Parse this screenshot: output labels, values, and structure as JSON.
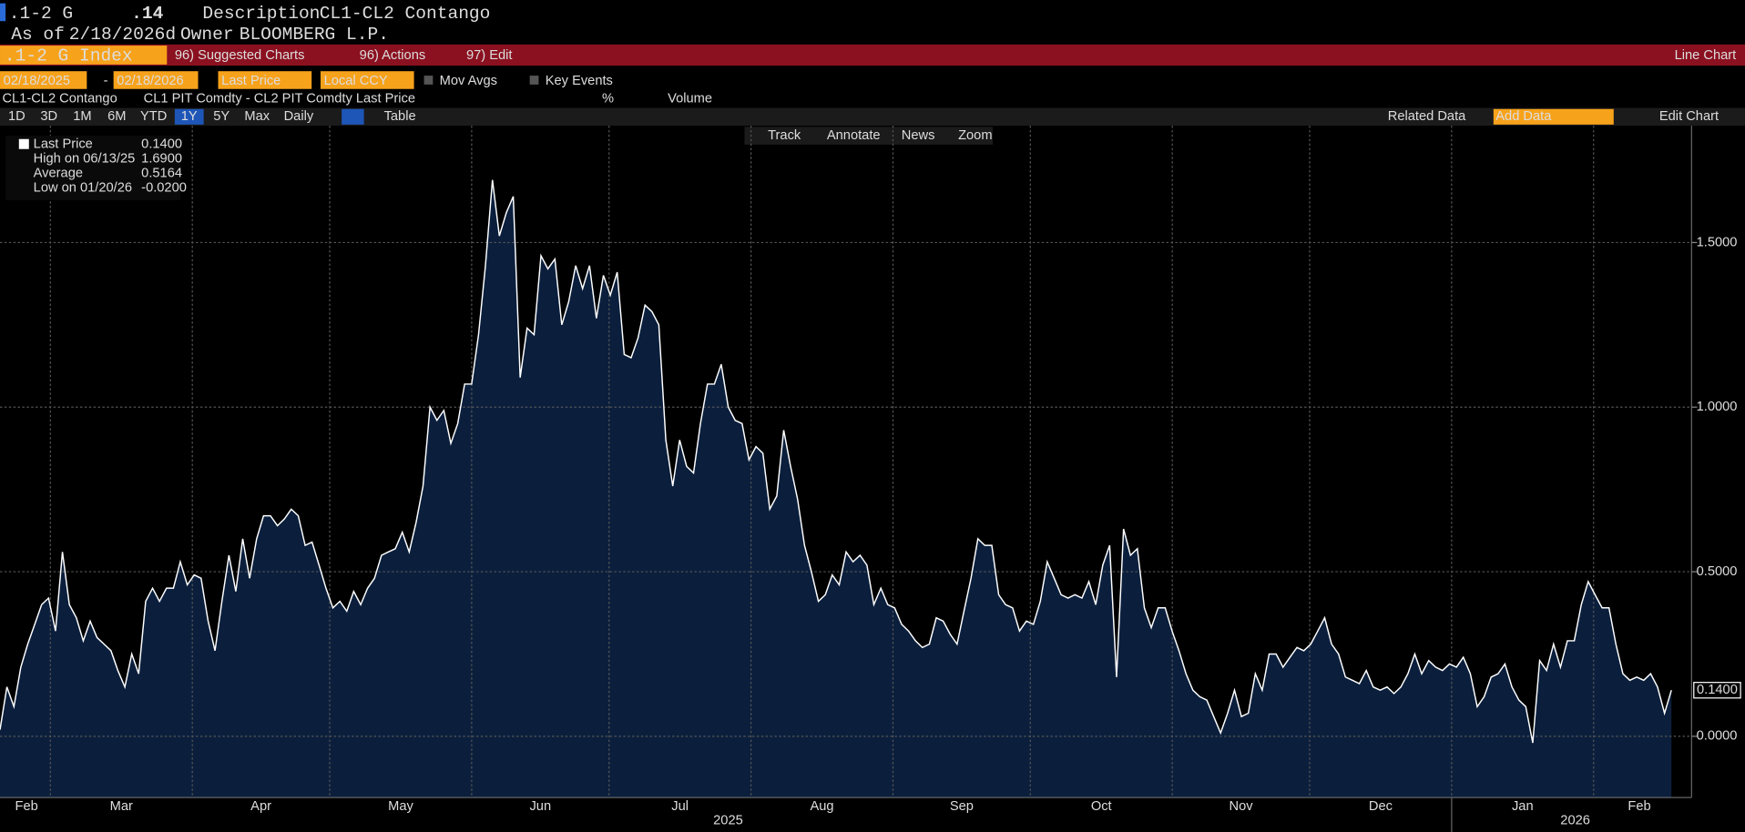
{
  "header": {
    "ticker": ".1-2 G",
    "last": ".14",
    "description_label": "Description",
    "description": "CL1-CL2 Contango",
    "asof_label": "As of",
    "asof": "2/18/2026d",
    "owner_label": "Owner",
    "owner": "BLOOMBERG L.P."
  },
  "menu": {
    "security": ".1-2 G Index",
    "suggested": "96) Suggested Charts",
    "actions": "96) Actions",
    "edit": "97) Edit",
    "view": "Line Chart"
  },
  "controls": {
    "start": "02/18/2025",
    "dash": "-",
    "end": "02/18/2026",
    "field": "Last Price",
    "currency": "Local CCY",
    "mov_avgs": "Mov Avgs",
    "key_events": "Key Events"
  },
  "series_row": {
    "name": "CL1-CL2 Contango",
    "formula": "CL1 PIT Comdty - CL2 PIT Comdty Last Price",
    "unit": "%",
    "volume": "Volume"
  },
  "periods": [
    "1D",
    "3D",
    "1M",
    "6M",
    "YTD",
    "1Y",
    "5Y",
    "Max"
  ],
  "frequency": "Daily",
  "table": "Table",
  "right_tools": {
    "related": "Related Data",
    "add": "Add Data",
    "edit_chart": "Edit Chart"
  },
  "chart_tools": [
    "Track",
    "Annotate",
    "News",
    "Zoom"
  ],
  "chart_data": {
    "type": "area",
    "color": "#ffffff",
    "fill": "#0b1f3d",
    "grid": true,
    "legend": [
      {
        "label": "Last Price",
        "value": "0.1400"
      },
      {
        "label": "High on 06/13/25",
        "value": "1.6900"
      },
      {
        "label": "Average",
        "value": "0.5164"
      },
      {
        "label": "Low on 01/20/26",
        "value": "-0.0200"
      }
    ],
    "price_tag": "0.1400",
    "values": [
      0.02,
      0.15,
      0.09,
      0.21,
      0.28,
      0.34,
      0.4,
      0.42,
      0.32,
      0.56,
      0.4,
      0.36,
      0.29,
      0.35,
      0.3,
      0.28,
      0.26,
      0.2,
      0.15,
      0.25,
      0.19,
      0.41,
      0.45,
      0.41,
      0.45,
      0.45,
      0.53,
      0.46,
      0.49,
      0.48,
      0.35,
      0.26,
      0.41,
      0.55,
      0.44,
      0.6,
      0.48,
      0.6,
      0.67,
      0.67,
      0.64,
      0.66,
      0.69,
      0.67,
      0.58,
      0.59,
      0.52,
      0.45,
      0.39,
      0.41,
      0.38,
      0.44,
      0.4,
      0.45,
      0.48,
      0.55,
      0.56,
      0.57,
      0.62,
      0.56,
      0.65,
      0.76,
      1.0,
      0.96,
      0.99,
      0.89,
      0.95,
      1.07,
      1.07,
      1.22,
      1.43,
      1.69,
      1.52,
      1.59,
      1.64,
      1.09,
      1.24,
      1.22,
      1.46,
      1.42,
      1.45,
      1.25,
      1.32,
      1.43,
      1.36,
      1.43,
      1.27,
      1.4,
      1.34,
      1.41,
      1.16,
      1.15,
      1.21,
      1.31,
      1.29,
      1.25,
      0.9,
      0.76,
      0.9,
      0.82,
      0.8,
      0.95,
      1.07,
      1.07,
      1.13,
      1.0,
      0.96,
      0.95,
      0.84,
      0.88,
      0.86,
      0.69,
      0.73,
      0.93,
      0.82,
      0.72,
      0.58,
      0.5,
      0.41,
      0.43,
      0.49,
      0.46,
      0.56,
      0.53,
      0.55,
      0.52,
      0.4,
      0.45,
      0.4,
      0.39,
      0.34,
      0.32,
      0.29,
      0.27,
      0.28,
      0.36,
      0.35,
      0.31,
      0.28,
      0.38,
      0.48,
      0.6,
      0.58,
      0.58,
      0.43,
      0.4,
      0.39,
      0.32,
      0.35,
      0.34,
      0.41,
      0.53,
      0.48,
      0.43,
      0.42,
      0.43,
      0.42,
      0.47,
      0.4,
      0.52,
      0.58,
      0.18,
      0.63,
      0.55,
      0.57,
      0.39,
      0.33,
      0.39,
      0.39,
      0.32,
      0.26,
      0.19,
      0.14,
      0.12,
      0.11,
      0.06,
      0.01,
      0.07,
      0.14,
      0.06,
      0.07,
      0.19,
      0.14,
      0.25,
      0.25,
      0.21,
      0.24,
      0.27,
      0.26,
      0.28,
      0.32,
      0.36,
      0.28,
      0.25,
      0.18,
      0.17,
      0.16,
      0.2,
      0.15,
      0.14,
      0.15,
      0.13,
      0.15,
      0.19,
      0.25,
      0.19,
      0.23,
      0.21,
      0.2,
      0.22,
      0.21,
      0.24,
      0.19,
      0.09,
      0.12,
      0.18,
      0.19,
      0.22,
      0.15,
      0.11,
      0.09,
      -0.02,
      0.23,
      0.2,
      0.28,
      0.21,
      0.29,
      0.29,
      0.4,
      0.47,
      0.43,
      0.39,
      0.39,
      0.28,
      0.19,
      0.17,
      0.18,
      0.17,
      0.19,
      0.15,
      0.07,
      0.14
    ],
    "ylim": [
      -0.186,
      1.855
    ],
    "yticks": [
      {
        "value": 0,
        "label": "0.0000"
      },
      {
        "value": 0.5,
        "label": "0.5000"
      },
      {
        "value": 1,
        "label": "1.0000"
      },
      {
        "value": 1.5,
        "label": "1.5000"
      }
    ],
    "xlim": [
      0,
      369.4
    ],
    "xgrid": [
      11,
      42,
      72,
      103,
      133,
      164,
      195,
      225,
      256,
      286,
      317,
      348
    ],
    "xticks": [
      {
        "value": 5.8,
        "label": "Feb"
      },
      {
        "value": 26.5,
        "label": "Mar"
      },
      {
        "value": 57,
        "label": "Apr"
      },
      {
        "value": 87.5,
        "label": "May"
      },
      {
        "value": 118,
        "label": "Jun"
      },
      {
        "value": 148.5,
        "label": "Jul"
      },
      {
        "value": 179.5,
        "label": "Aug"
      },
      {
        "value": 210,
        "label": "Sep"
      },
      {
        "value": 240.5,
        "label": "Oct"
      },
      {
        "value": 271,
        "label": "Nov"
      },
      {
        "value": 301.5,
        "label": "Dec"
      },
      {
        "value": 332.5,
        "label": "Jan"
      },
      {
        "value": 358,
        "label": "Feb"
      }
    ],
    "years": [
      {
        "value": 159,
        "label": "2025"
      },
      {
        "value": 344,
        "label": "2026"
      }
    ],
    "year_break": 317
  }
}
